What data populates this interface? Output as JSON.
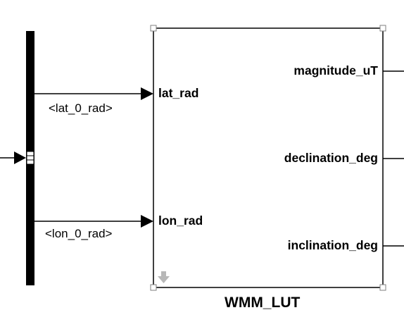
{
  "diagram": {
    "block": {
      "name": "WMM_LUT",
      "inputs": [
        "lat_rad",
        "lon_rad"
      ],
      "outputs": [
        "magnitude_uT",
        "declination_deg",
        "inclination_deg"
      ]
    },
    "bus_signals": [
      "<lat_0_rad>",
      "<lon_0_rad>"
    ]
  }
}
